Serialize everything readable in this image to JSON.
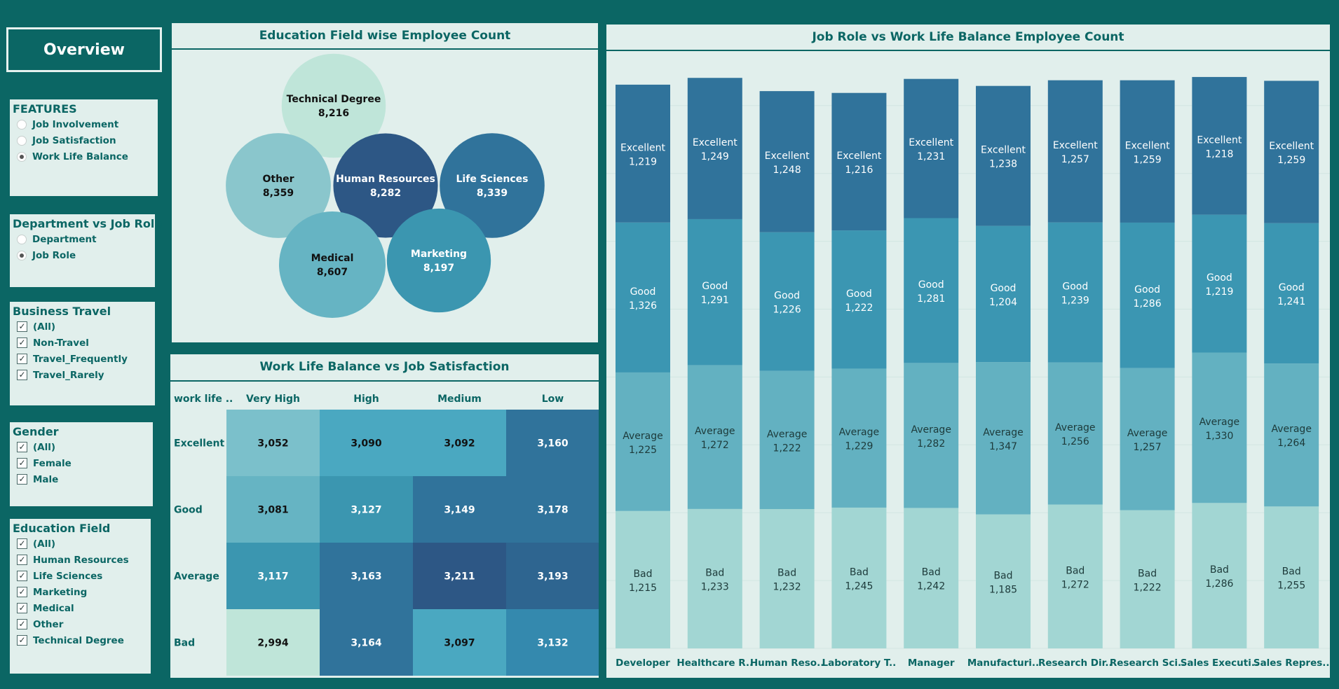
{
  "overview": {
    "label": "Overview"
  },
  "features": {
    "title": "FEATURES",
    "options": [
      {
        "label": "Job Involvement",
        "selected": false
      },
      {
        "label": "Job Satisfaction",
        "selected": false
      },
      {
        "label": "Work Life Balance",
        "selected": true
      }
    ]
  },
  "dept_role": {
    "title": "Department vs Job Role",
    "options": [
      {
        "label": "Department",
        "selected": false
      },
      {
        "label": "Job Role",
        "selected": true
      }
    ]
  },
  "business_travel": {
    "title": "Business Travel",
    "items": [
      "(All)",
      "Non-Travel",
      "Travel_Frequently",
      "Travel_Rarely"
    ]
  },
  "gender": {
    "title": "Gender",
    "items": [
      "(All)",
      "Female",
      "Male"
    ]
  },
  "education_filter": {
    "title": "Education Field",
    "items": [
      "(All)",
      "Human Resources",
      "Life Sciences",
      "Marketing",
      "Medical",
      "Other",
      "Technical Degree"
    ]
  },
  "chart_data": [
    {
      "type": "bubble",
      "title": "Education Field wise Employee Count",
      "items": [
        {
          "label": "Technical Degree",
          "value": 8216,
          "display": "8,216",
          "color": "#bfe5d9",
          "text_color": "#111111"
        },
        {
          "label": "Other",
          "value": 8359,
          "display": "8,359",
          "color": "#8ac6cc",
          "text_color": "#111111"
        },
        {
          "label": "Human Resources",
          "value": 8282,
          "display": "8,282",
          "color": "#2d5785",
          "text_color": "#ffffff"
        },
        {
          "label": "Life Sciences",
          "value": 8339,
          "display": "8,339",
          "color": "#30739b",
          "text_color": "#ffffff"
        },
        {
          "label": "Medical",
          "value": 8607,
          "display": "8,607",
          "color": "#66b4c3",
          "text_color": "#111111"
        },
        {
          "label": "Marketing",
          "value": 8197,
          "display": "8,197",
          "color": "#3b96b0",
          "text_color": "#ffffff"
        }
      ]
    },
    {
      "type": "heatmap",
      "title": "Work Life Balance vs Job Satisfaction",
      "row_header": "work life ..",
      "columns": [
        "Very High",
        "High",
        "Medium",
        "Low"
      ],
      "rows": [
        "Excellent",
        "Good",
        "Average",
        "Bad"
      ],
      "values": [
        [
          3052,
          3090,
          3092,
          3160
        ],
        [
          3081,
          3127,
          3149,
          3178
        ],
        [
          3117,
          3163,
          3211,
          3193
        ],
        [
          2994,
          3164,
          3097,
          3132
        ]
      ],
      "display": [
        [
          "3,052",
          "3,090",
          "3,092",
          "3,160"
        ],
        [
          "3,081",
          "3,127",
          "3,149",
          "3,178"
        ],
        [
          "3,117",
          "3,163",
          "3,211",
          "3,193"
        ],
        [
          "2,994",
          "3,164",
          "3,097",
          "3,132"
        ]
      ],
      "colors": [
        [
          "#7bc0cb",
          "#4aa8c1",
          "#4aa8c1",
          "#30739b"
        ],
        [
          "#66b4c3",
          "#3b96b0",
          "#30739b",
          "#30739b"
        ],
        [
          "#3b96b0",
          "#30739b",
          "#2d5785",
          "#2e6590"
        ],
        [
          "#bfe5d9",
          "#30739b",
          "#4aa8c1",
          "#3489ae"
        ]
      ],
      "text_colors": [
        [
          "#111111",
          "#111111",
          "#111111",
          "#ffffff"
        ],
        [
          "#111111",
          "#ffffff",
          "#ffffff",
          "#ffffff"
        ],
        [
          "#ffffff",
          "#ffffff",
          "#ffffff",
          "#ffffff"
        ],
        [
          "#111111",
          "#ffffff",
          "#111111",
          "#ffffff"
        ]
      ]
    },
    {
      "type": "bar",
      "stacked": true,
      "title": "Job Role  vs  Work Life Balance Employee Count",
      "categories": [
        "Developer",
        "Healthcare R..",
        "Human Reso..",
        "Laboratory T..",
        "Manager",
        "Manufacturi..",
        "Research Dir..",
        "Research Sci..",
        "Sales Executi..",
        "Sales Repres.."
      ],
      "series": [
        {
          "name": "Bad",
          "color": "#a2d6d3",
          "values": [
            1215,
            1233,
            1232,
            1245,
            1242,
            1185,
            1272,
            1222,
            1286,
            1255
          ],
          "display": [
            "1,215",
            "1,233",
            "1,232",
            "1,245",
            "1,242",
            "1,185",
            "1,272",
            "1,222",
            "1,286",
            "1,255"
          ]
        },
        {
          "name": "Average",
          "color": "#63b1c1",
          "values": [
            1225,
            1272,
            1222,
            1229,
            1282,
            1347,
            1256,
            1257,
            1330,
            1264
          ],
          "display": [
            "1,225",
            "1,272",
            "1,222",
            "1,229",
            "1,282",
            "1,347",
            "1,256",
            "1,257",
            "1,330",
            "1,264"
          ]
        },
        {
          "name": "Good",
          "color": "#3b96b2",
          "values": [
            1326,
            1291,
            1226,
            1222,
            1281,
            1204,
            1239,
            1286,
            1219,
            1241
          ],
          "display": [
            "1,326",
            "1,291",
            "1,226",
            "1,222",
            "1,281",
            "1,204",
            "1,239",
            "1,286",
            "1,219",
            "1,241"
          ]
        },
        {
          "name": "Excellent",
          "color": "#30739b",
          "values": [
            1219,
            1249,
            1248,
            1216,
            1231,
            1238,
            1257,
            1259,
            1218,
            1259
          ],
          "display": [
            "1,219",
            "1,249",
            "1,248",
            "1,216",
            "1,231",
            "1,238",
            "1,257",
            "1,259",
            "1,218",
            "1,259"
          ]
        }
      ]
    }
  ]
}
